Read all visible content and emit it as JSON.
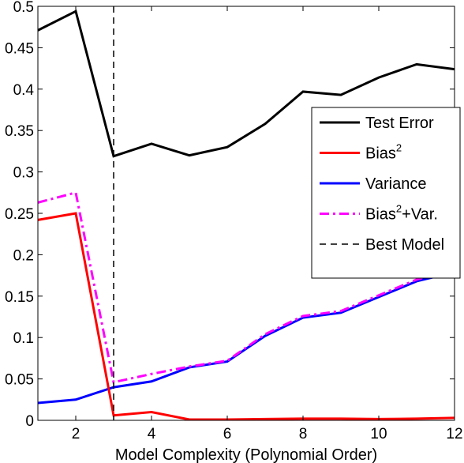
{
  "chart_data": {
    "type": "line",
    "xlabel": "Model Complexity (Polynomial Order)",
    "ylabel": "",
    "title": "",
    "xlim": [
      1,
      12
    ],
    "ylim": [
      0,
      0.5
    ],
    "xticks": [
      2,
      4,
      6,
      8,
      10,
      12
    ],
    "yticks": [
      0,
      0.05,
      0.1,
      0.15,
      0.2,
      0.25,
      0.3,
      0.35,
      0.4,
      0.45,
      0.5
    ],
    "ytick_labels": [
      "0",
      "0.05",
      "0.1",
      "0.15",
      "0.2",
      "0.25",
      "0.3",
      "0.35",
      "0.4",
      "0.45",
      "0.5"
    ],
    "grid": false,
    "legend_position": "right",
    "x": [
      1,
      2,
      3,
      4,
      5,
      6,
      7,
      8,
      9,
      10,
      11,
      12
    ],
    "series": [
      {
        "key": "test",
        "legend_text": "Test Error",
        "color": "#000000",
        "style": "solid",
        "values": [
          0.471,
          0.494,
          0.319,
          0.334,
          0.32,
          0.33,
          0.358,
          0.397,
          0.393,
          0.414,
          0.43,
          0.424
        ]
      },
      {
        "key": "bias",
        "legend_text": "Bias",
        "legend_sup": "2",
        "color": "#ff0000",
        "style": "solid",
        "values": [
          0.242,
          0.25,
          0.006,
          0.01,
          0.001,
          0.001,
          0.0015,
          0.002,
          0.002,
          0.0015,
          0.002,
          0.003
        ]
      },
      {
        "key": "variance",
        "legend_text": "Variance",
        "color": "#0000ff",
        "style": "solid",
        "values": [
          0.021,
          0.025,
          0.04,
          0.047,
          0.064,
          0.071,
          0.102,
          0.124,
          0.13,
          0.149,
          0.168,
          0.179
        ]
      },
      {
        "key": "biasvar",
        "legend_text": "Bias",
        "legend_sup": "2",
        "legend_suffix": "+Var.",
        "color": "#ff00ff",
        "style": "dashdot",
        "values": [
          0.263,
          0.275,
          0.046,
          0.056,
          0.065,
          0.072,
          0.104,
          0.126,
          0.132,
          0.151,
          0.17,
          0.182
        ]
      }
    ],
    "reference_line": {
      "legend_text": "Best Model",
      "x": 3,
      "color": "#000000",
      "style": "dashed"
    }
  }
}
